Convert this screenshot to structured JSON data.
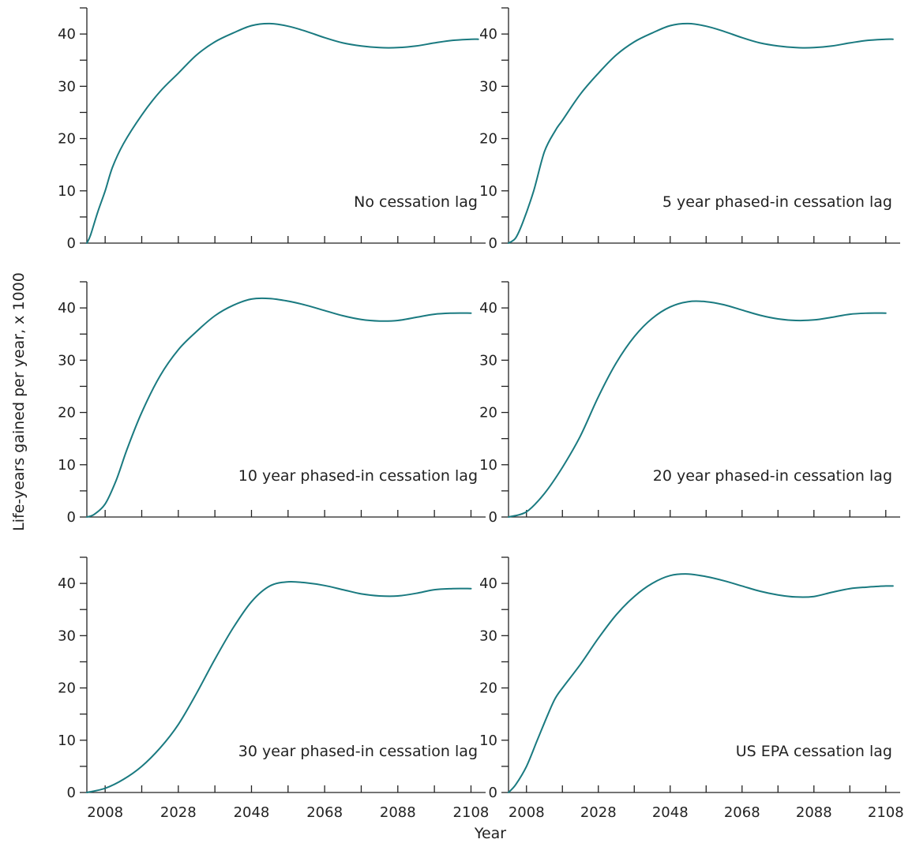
{
  "chart_data": {
    "type": "line",
    "layout": "3x2 small multiples",
    "xlabel": "Year",
    "ylabel": "Life-years gained per year,  x 1000",
    "xlim": [
      2003,
      2112
    ],
    "ylim": [
      0,
      45
    ],
    "x_ticks": [
      2008,
      2028,
      2048,
      2068,
      2088,
      2108
    ],
    "x_minor_ticks": [
      2018,
      2038,
      2058,
      2078,
      2098
    ],
    "y_ticks": [
      0,
      10,
      20,
      30,
      40
    ],
    "y_minor_ticks": [
      5,
      15,
      25,
      35,
      45
    ],
    "grid": false,
    "line_color": "#1a7a80",
    "panels": [
      {
        "label": "No cessation lag",
        "x": [
          2003,
          2004,
          2006,
          2008,
          2010,
          2013,
          2018,
          2023,
          2028,
          2033,
          2038,
          2043,
          2048,
          2053,
          2058,
          2063,
          2068,
          2073,
          2078,
          2083,
          2088,
          2093,
          2098,
          2103,
          2108,
          2110
        ],
        "y": [
          0,
          1.5,
          6,
          10,
          14.5,
          19,
          24.5,
          29,
          32.5,
          36,
          38.5,
          40.2,
          41.6,
          42,
          41.5,
          40.5,
          39.3,
          38.3,
          37.7,
          37.4,
          37.4,
          37.7,
          38.3,
          38.8,
          39,
          39
        ]
      },
      {
        "label": "5 year phased-in cessation lag",
        "x": [
          2003,
          2005,
          2007,
          2010,
          2013,
          2016,
          2018,
          2023,
          2028,
          2033,
          2038,
          2043,
          2048,
          2053,
          2058,
          2063,
          2068,
          2073,
          2078,
          2083,
          2088,
          2093,
          2098,
          2103,
          2108,
          2110
        ],
        "y": [
          0,
          1,
          4,
          10,
          17.5,
          21.5,
          23.5,
          28.5,
          32.5,
          36,
          38.5,
          40.2,
          41.6,
          42,
          41.5,
          40.5,
          39.3,
          38.3,
          37.7,
          37.4,
          37.4,
          37.7,
          38.3,
          38.8,
          39,
          39
        ]
      },
      {
        "label": "10 year phased-in cessation lag",
        "x": [
          2003,
          2005,
          2008,
          2011,
          2014,
          2018,
          2023,
          2028,
          2033,
          2038,
          2043,
          2048,
          2053,
          2058,
          2063,
          2068,
          2073,
          2078,
          2083,
          2088,
          2093,
          2098,
          2103,
          2108
        ],
        "y": [
          0,
          0.5,
          2.5,
          7,
          13,
          20,
          27,
          32,
          35.5,
          38.5,
          40.5,
          41.7,
          41.8,
          41.3,
          40.5,
          39.5,
          38.5,
          37.8,
          37.5,
          37.6,
          38.2,
          38.8,
          39,
          39
        ]
      },
      {
        "label": "20 year phased-in cessation lag",
        "x": [
          2003,
          2008,
          2013,
          2018,
          2023,
          2028,
          2033,
          2038,
          2043,
          2048,
          2053,
          2058,
          2063,
          2068,
          2073,
          2078,
          2083,
          2088,
          2093,
          2098,
          2103,
          2108
        ],
        "y": [
          0,
          1,
          4.5,
          9.5,
          15.5,
          23,
          29.5,
          34.5,
          38,
          40.2,
          41.2,
          41.2,
          40.6,
          39.6,
          38.6,
          37.9,
          37.6,
          37.7,
          38.2,
          38.8,
          39,
          39
        ]
      },
      {
        "label": "30 year phased-in cessation lag",
        "x": [
          2003,
          2008,
          2013,
          2018,
          2023,
          2028,
          2033,
          2038,
          2043,
          2048,
          2053,
          2058,
          2063,
          2068,
          2073,
          2078,
          2083,
          2088,
          2093,
          2098,
          2103,
          2108
        ],
        "y": [
          0,
          0.8,
          2.5,
          5,
          8.5,
          13,
          19,
          25.5,
          31.5,
          36.5,
          39.5,
          40.3,
          40.1,
          39.6,
          38.8,
          38,
          37.6,
          37.6,
          38.1,
          38.8,
          39,
          39
        ]
      },
      {
        "label": "US EPA cessation lag",
        "x": [
          2003,
          2005,
          2008,
          2011,
          2014,
          2016,
          2018,
          2023,
          2028,
          2033,
          2038,
          2043,
          2048,
          2053,
          2058,
          2063,
          2068,
          2073,
          2078,
          2083,
          2088,
          2093,
          2098,
          2103,
          2108,
          2110
        ],
        "y": [
          0,
          1.5,
          5,
          10,
          15,
          18,
          20,
          24.5,
          29.5,
          34,
          37.5,
          40,
          41.5,
          41.8,
          41.3,
          40.5,
          39.5,
          38.5,
          37.8,
          37.4,
          37.5,
          38.3,
          39,
          39.3,
          39.5,
          39.5
        ]
      }
    ]
  }
}
